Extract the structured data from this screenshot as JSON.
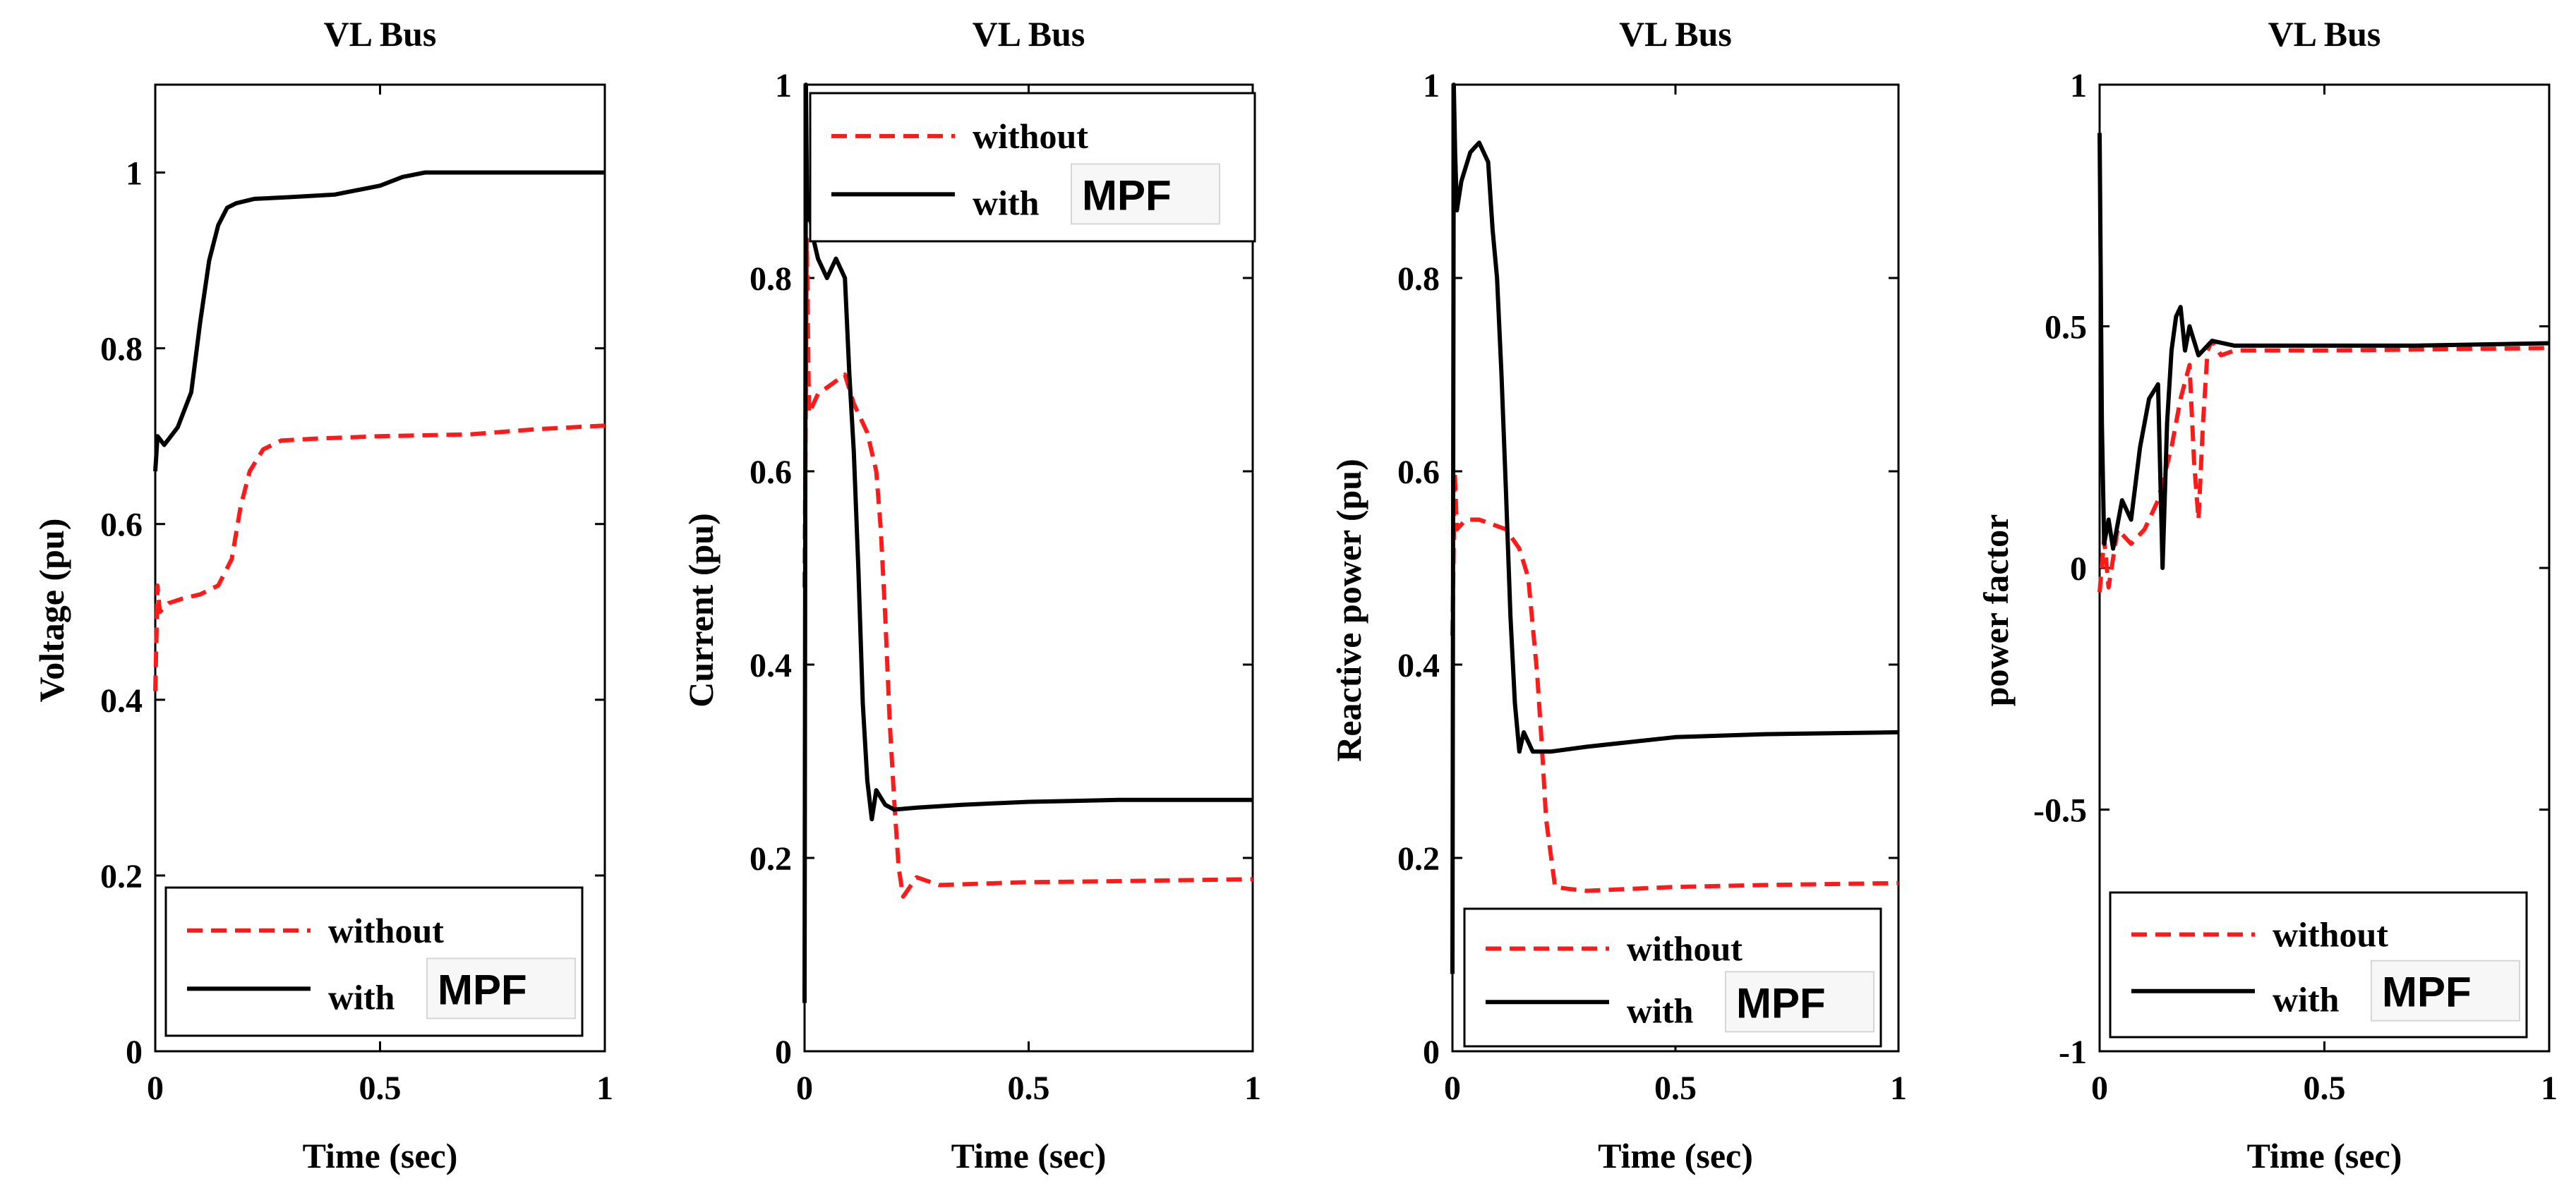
{
  "chart_data": [
    {
      "type": "line",
      "title": "VL Bus",
      "xlabel": "Time (sec)",
      "ylabel": "Voltage (pu)",
      "xlim": [
        0,
        1
      ],
      "ylim": [
        0,
        1.1
      ],
      "xticks": [
        0,
        0.5,
        1
      ],
      "xtick_labels": [
        "0",
        "0.5",
        "1"
      ],
      "yticks": [
        0,
        0.2,
        0.4,
        0.6,
        0.8,
        1
      ],
      "ytick_labels": [
        "0",
        "0.2",
        "0.4",
        "0.6",
        "0.8",
        "1"
      ],
      "legend": {
        "position": "bottom",
        "entries": [
          "without",
          "with"
        ],
        "suffix": "MPF"
      },
      "series": [
        {
          "name": "without",
          "style": "dashed",
          "color": "#ff1a1a",
          "x": [
            0,
            0.005,
            0.01,
            0.03,
            0.06,
            0.1,
            0.14,
            0.17,
            0.19,
            0.21,
            0.24,
            0.28,
            0.35,
            0.5,
            0.7,
            0.85,
            1
          ],
          "y": [
            0.41,
            0.53,
            0.5,
            0.51,
            0.515,
            0.52,
            0.53,
            0.56,
            0.62,
            0.66,
            0.685,
            0.695,
            0.697,
            0.7,
            0.702,
            0.708,
            0.712
          ]
        },
        {
          "name": "with",
          "style": "solid",
          "color": "#000000",
          "x": [
            0,
            0.005,
            0.02,
            0.05,
            0.08,
            0.1,
            0.12,
            0.14,
            0.16,
            0.18,
            0.22,
            0.3,
            0.4,
            0.5,
            0.55,
            0.6,
            0.7,
            1
          ],
          "y": [
            0.66,
            0.7,
            0.69,
            0.71,
            0.75,
            0.83,
            0.9,
            0.94,
            0.96,
            0.965,
            0.97,
            0.972,
            0.975,
            0.985,
            0.995,
            1.0,
            1.0,
            1.0
          ]
        }
      ]
    },
    {
      "type": "line",
      "title": "VL Bus",
      "xlabel": "Time (sec)",
      "ylabel": "Current (pu)",
      "xlim": [
        0,
        1
      ],
      "ylim": [
        0,
        1
      ],
      "xticks": [
        0,
        0.5,
        1
      ],
      "xtick_labels": [
        "0",
        "0.5",
        "1"
      ],
      "yticks": [
        0,
        0.2,
        0.4,
        0.6,
        0.8,
        1
      ],
      "ytick_labels": [
        "0",
        "0.2",
        "0.4",
        "0.6",
        "0.8",
        "1"
      ],
      "legend": {
        "position": "top",
        "entries": [
          "without",
          "with"
        ],
        "suffix": "MPF"
      },
      "series": [
        {
          "name": "without",
          "style": "dashed",
          "color": "#ff1a1a",
          "x": [
            0,
            0.005,
            0.01,
            0.03,
            0.06,
            0.09,
            0.11,
            0.14,
            0.16,
            0.17,
            0.18,
            0.19,
            0.2,
            0.21,
            0.22,
            0.25,
            0.3,
            0.5,
            0.7,
            1
          ],
          "y": [
            0.48,
            0.84,
            0.66,
            0.68,
            0.69,
            0.7,
            0.67,
            0.64,
            0.6,
            0.54,
            0.45,
            0.34,
            0.26,
            0.19,
            0.16,
            0.18,
            0.172,
            0.175,
            0.176,
            0.178
          ]
        },
        {
          "name": "with",
          "style": "solid",
          "color": "#000000",
          "x": [
            0,
            0.003,
            0.006,
            0.01,
            0.02,
            0.03,
            0.05,
            0.07,
            0.09,
            0.1,
            0.11,
            0.12,
            0.13,
            0.14,
            0.15,
            0.16,
            0.18,
            0.2,
            0.25,
            0.35,
            0.5,
            0.7,
            1
          ],
          "y": [
            0.05,
            1.0,
            0.86,
            0.87,
            0.84,
            0.82,
            0.8,
            0.82,
            0.8,
            0.7,
            0.62,
            0.5,
            0.36,
            0.28,
            0.24,
            0.27,
            0.255,
            0.25,
            0.252,
            0.255,
            0.258,
            0.26,
            0.26
          ]
        }
      ]
    },
    {
      "type": "line",
      "title": "VL Bus",
      "xlabel": "Time (sec)",
      "ylabel": "Reactive power (pu)",
      "xlim": [
        0,
        1
      ],
      "ylim": [
        0,
        1
      ],
      "xticks": [
        0,
        0.5,
        1
      ],
      "xtick_labels": [
        "0",
        "0.5",
        "1"
      ],
      "yticks": [
        0,
        0.2,
        0.4,
        0.6,
        0.8,
        1
      ],
      "ytick_labels": [
        "0",
        "0.2",
        "0.4",
        "0.6",
        "0.8",
        "1"
      ],
      "legend": {
        "position": "bottom",
        "entries": [
          "without",
          "with"
        ],
        "suffix": "MPF"
      },
      "series": [
        {
          "name": "without",
          "style": "dashed",
          "color": "#ff1a1a",
          "x": [
            0,
            0.005,
            0.01,
            0.03,
            0.06,
            0.09,
            0.12,
            0.15,
            0.17,
            0.18,
            0.19,
            0.2,
            0.21,
            0.23,
            0.26,
            0.3,
            0.5,
            0.7,
            1
          ],
          "y": [
            0.43,
            0.6,
            0.54,
            0.55,
            0.55,
            0.545,
            0.54,
            0.52,
            0.49,
            0.44,
            0.39,
            0.32,
            0.24,
            0.17,
            0.168,
            0.166,
            0.17,
            0.172,
            0.174
          ]
        },
        {
          "name": "with",
          "style": "solid",
          "color": "#000000",
          "x": [
            0,
            0.003,
            0.006,
            0.01,
            0.02,
            0.04,
            0.06,
            0.08,
            0.09,
            0.1,
            0.11,
            0.12,
            0.13,
            0.14,
            0.15,
            0.16,
            0.18,
            0.22,
            0.3,
            0.4,
            0.5,
            0.7,
            1
          ],
          "y": [
            0.08,
            1.0,
            0.93,
            0.87,
            0.9,
            0.93,
            0.94,
            0.92,
            0.85,
            0.8,
            0.7,
            0.58,
            0.45,
            0.36,
            0.31,
            0.33,
            0.31,
            0.31,
            0.315,
            0.32,
            0.325,
            0.328,
            0.33
          ]
        }
      ]
    },
    {
      "type": "line",
      "title": "VL Bus",
      "xlabel": "Time (sec)",
      "ylabel": "power factor",
      "xlim": [
        0,
        1
      ],
      "ylim": [
        -1,
        1
      ],
      "xticks": [
        0,
        0.5,
        1
      ],
      "xtick_labels": [
        "0",
        "0.5",
        "1"
      ],
      "yticks": [
        -1,
        -0.5,
        0,
        0.5,
        1
      ],
      "ytick_labels": [
        "-1",
        "-0.5",
        "0",
        "0.5",
        "1"
      ],
      "legend": {
        "position": "bottom",
        "entries": [
          "without",
          "with"
        ],
        "suffix": "MPF"
      },
      "series": [
        {
          "name": "without",
          "style": "dashed",
          "color": "#ff1a1a",
          "x": [
            0,
            0.01,
            0.02,
            0.04,
            0.07,
            0.1,
            0.13,
            0.16,
            0.18,
            0.2,
            0.21,
            0.22,
            0.23,
            0.24,
            0.25,
            0.27,
            0.3,
            0.5,
            0.7,
            1
          ],
          "y": [
            -0.05,
            0.06,
            -0.04,
            0.08,
            0.05,
            0.08,
            0.14,
            0.25,
            0.35,
            0.42,
            0.22,
            0.1,
            0.3,
            0.45,
            0.47,
            0.44,
            0.45,
            0.45,
            0.452,
            0.455
          ]
        },
        {
          "name": "with",
          "style": "solid",
          "color": "#000000",
          "x": [
            0,
            0.005,
            0.01,
            0.02,
            0.03,
            0.05,
            0.07,
            0.09,
            0.11,
            0.13,
            0.14,
            0.15,
            0.16,
            0.17,
            0.18,
            0.19,
            0.2,
            0.22,
            0.25,
            0.3,
            0.5,
            0.7,
            1
          ],
          "y": [
            0.9,
            0.3,
            0.05,
            0.1,
            0.04,
            0.14,
            0.1,
            0.25,
            0.35,
            0.38,
            0.0,
            0.3,
            0.45,
            0.52,
            0.54,
            0.45,
            0.5,
            0.44,
            0.47,
            0.46,
            0.46,
            0.46,
            0.465
          ]
        }
      ]
    }
  ]
}
